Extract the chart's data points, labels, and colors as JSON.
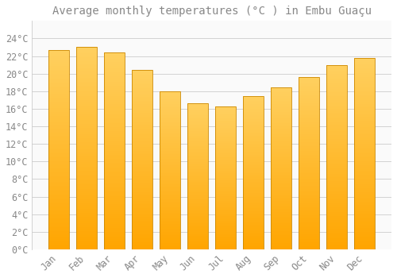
{
  "title": "Average monthly temperatures (°C ) in Embu Guaçu",
  "months": [
    "Jan",
    "Feb",
    "Mar",
    "Apr",
    "May",
    "Jun",
    "Jul",
    "Aug",
    "Sep",
    "Oct",
    "Nov",
    "Dec"
  ],
  "values": [
    22.7,
    23.0,
    22.4,
    20.4,
    18.0,
    16.6,
    16.3,
    17.4,
    18.4,
    19.6,
    21.0,
    21.8
  ],
  "bar_color_top": "#FFD060",
  "bar_color_bottom": "#FFA500",
  "bar_edge_color": "#CC8800",
  "background_color": "#FFFFFF",
  "plot_bg_color": "#FAFAFA",
  "grid_color": "#CCCCCC",
  "text_color": "#888888",
  "ylim": [
    0,
    26
  ],
  "yticks": [
    0,
    2,
    4,
    6,
    8,
    10,
    12,
    14,
    16,
    18,
    20,
    22,
    24
  ],
  "title_fontsize": 10,
  "tick_fontsize": 8.5,
  "figsize": [
    5.0,
    3.5
  ],
  "dpi": 100,
  "bar_width": 0.75
}
